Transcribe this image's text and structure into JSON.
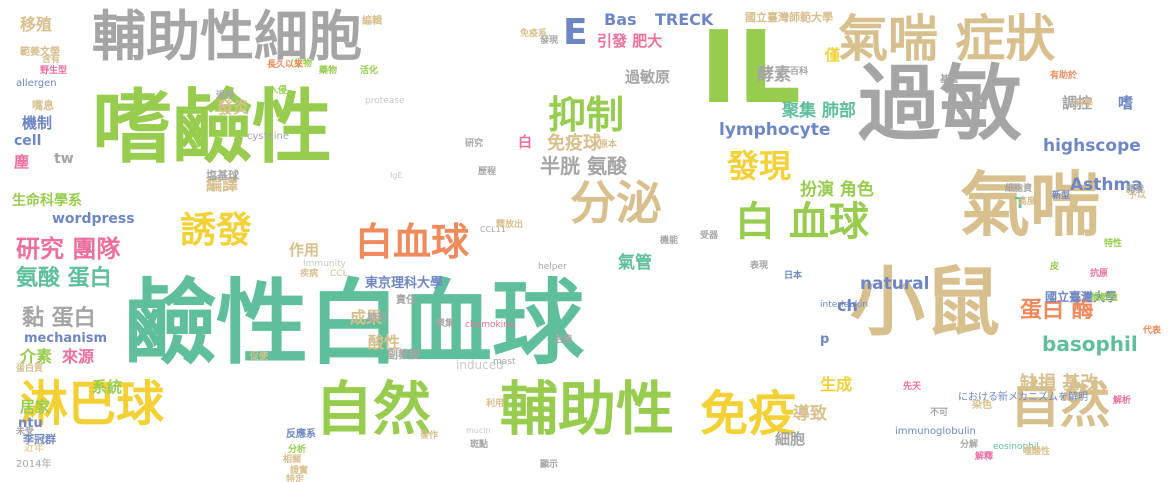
{
  "colors": {
    "tan": "#d8bf8e",
    "green": "#97cc4e",
    "gray": "#a5a5a5",
    "teal": "#5fbf9a",
    "yellow": "#f3d135",
    "orange": "#f08a5d",
    "blue": "#6e87c4",
    "pink": "#ee6f9f",
    "lightgray": "#c8c8c8"
  },
  "words": [
    {
      "text": "嗜鹼性",
      "color": "green"
    },
    {
      "text": "鹼性白血球",
      "color": "teal"
    },
    {
      "text": "輔助性細胞",
      "color": "gray"
    },
    {
      "text": "過敏",
      "color": "gray"
    },
    {
      "text": "IL",
      "color": "green"
    },
    {
      "text": "氣喘 症狀",
      "color": "tan"
    },
    {
      "text": "氣喘",
      "color": "tan"
    },
    {
      "text": "小鼠",
      "color": "tan"
    },
    {
      "text": "自然",
      "color": "green"
    },
    {
      "text": "輔助性",
      "color": "green"
    },
    {
      "text": "自然",
      "color": "tan"
    },
    {
      "text": "淋巴球",
      "color": "yellow"
    },
    {
      "text": "免疫",
      "color": "yellow"
    },
    {
      "text": "白血球",
      "color": "orange"
    },
    {
      "text": "白 血球",
      "color": "green"
    },
    {
      "text": "分泌",
      "color": "tan"
    },
    {
      "text": "抑制",
      "color": "green"
    },
    {
      "text": "誘發",
      "color": "yellow"
    },
    {
      "text": "發現",
      "color": "yellow"
    },
    {
      "text": "E",
      "color": "blue"
    },
    {
      "text": "研究 團隊",
      "color": "pink"
    },
    {
      "text": "氨酸 蛋白",
      "color": "teal"
    },
    {
      "text": "黏 蛋白",
      "color": "gray"
    },
    {
      "text": "免疫球",
      "color": "tan"
    },
    {
      "text": "半胱 氨酸",
      "color": "gray"
    },
    {
      "text": "lymphocyte",
      "color": "blue"
    },
    {
      "text": "highscope",
      "color": "blue"
    },
    {
      "text": "natural",
      "color": "blue"
    },
    {
      "text": "basophil",
      "color": "teal"
    },
    {
      "text": "蛋白 酶",
      "color": "orange"
    },
    {
      "text": "缺損 基改",
      "color": "tan"
    },
    {
      "text": "Asthma",
      "color": "blue"
    },
    {
      "text": "聚集 肺部",
      "color": "teal"
    },
    {
      "text": "扮演 角色",
      "color": "green"
    },
    {
      "text": "TRECK",
      "color": "blue"
    },
    {
      "text": "Bas",
      "color": "blue"
    },
    {
      "text": "引發 肥大",
      "color": "pink"
    },
    {
      "text": "過敏原",
      "color": "gray"
    },
    {
      "text": "酵素",
      "color": "gray"
    },
    {
      "text": "機制",
      "color": "blue"
    },
    {
      "text": "cell",
      "color": "blue"
    },
    {
      "text": "wordpress",
      "color": "blue"
    },
    {
      "text": "mechanism",
      "color": "blue"
    },
    {
      "text": "東京理科大學",
      "color": "blue"
    },
    {
      "text": "生命科學系",
      "color": "green"
    },
    {
      "text": "移殖",
      "color": "tan"
    },
    {
      "text": "發炎",
      "color": "tan"
    },
    {
      "text": "編譯",
      "color": "tan"
    },
    {
      "text": "作用",
      "color": "tan"
    },
    {
      "text": "成果",
      "color": "tan"
    },
    {
      "text": "酸性",
      "color": "tan"
    },
    {
      "text": "介素",
      "color": "green"
    },
    {
      "text": "來源",
      "color": "pink"
    },
    {
      "text": "系統",
      "color": "green"
    },
    {
      "text": "居家",
      "color": "green"
    },
    {
      "text": "ntu",
      "color": "blue"
    },
    {
      "text": "導致",
      "color": "tan"
    },
    {
      "text": "生成",
      "color": "yellow"
    },
    {
      "text": "細胞",
      "color": "gray"
    },
    {
      "text": "氣管",
      "color": "teal"
    },
    {
      "text": "調控",
      "color": "gray"
    },
    {
      "text": "國立臺灣大學",
      "color": "blue"
    },
    {
      "text": "國立臺灣師範大學",
      "color": "tan"
    },
    {
      "text": "僅",
      "color": "yellow"
    },
    {
      "text": "嗜",
      "color": "blue"
    },
    {
      "text": "ch",
      "color": "blue"
    },
    {
      "text": "T",
      "color": "teal"
    },
    {
      "text": "p",
      "color": "blue"
    },
    {
      "text": "白",
      "color": "pink"
    },
    {
      "text": "塵",
      "color": "pink"
    },
    {
      "text": "tw",
      "color": "gray"
    },
    {
      "text": "induced",
      "color": "lightgray"
    },
    {
      "text": "塩基球",
      "color": "gray"
    },
    {
      "text": "李冠群",
      "color": "blue"
    },
    {
      "text": "副教授",
      "color": "gray"
    },
    {
      "text": "期刊",
      "color": "gray"
    },
    {
      "text": "責任",
      "color": "gray"
    },
    {
      "text": "編輯",
      "color": "tan"
    },
    {
      "text": "範姜文榮",
      "color": "tan"
    },
    {
      "text": "嘴息",
      "color": "tan"
    },
    {
      "text": "allergen",
      "color": "blue"
    },
    {
      "text": "cysteine",
      "color": "gray"
    },
    {
      "text": "protease",
      "color": "lightgray"
    },
    {
      "text": "immunoglobulin",
      "color": "blue"
    },
    {
      "text": "eosinophil",
      "color": "teal"
    },
    {
      "text": "interleukin",
      "color": "blue"
    },
    {
      "text": "chemokine",
      "color": "pink"
    },
    {
      "text": "mast",
      "color": "gray"
    },
    {
      "text": "helper",
      "color": "gray"
    },
    {
      "text": "Immunity",
      "color": "lightgray"
    },
    {
      "text": "CCL",
      "color": "tan"
    },
    {
      "text": "CCL11",
      "color": "gray"
    },
    {
      "text": "IgE",
      "color": "lightgray"
    },
    {
      "text": "mucin",
      "color": "lightgray"
    },
    {
      "text": "2014年",
      "color": "gray"
    },
    {
      "text": "近年",
      "color": "tan"
    },
    {
      "text": "における新メカニズムを解明",
      "color": "blue"
    },
    {
      "text": "反應系",
      "color": "blue"
    },
    {
      "text": "分解",
      "color": "gray"
    },
    {
      "text": "治療",
      "color": "gray"
    },
    {
      "text": "聚集",
      "color": "gray"
    },
    {
      "text": "研究",
      "color": "gray"
    },
    {
      "text": "原本",
      "color": "tan"
    },
    {
      "text": "日本",
      "color": "blue"
    },
    {
      "text": "分析",
      "color": "green"
    },
    {
      "text": "疾病",
      "color": "tan"
    },
    {
      "text": "證實",
      "color": "tan"
    },
    {
      "text": "相關",
      "color": "tan"
    },
    {
      "text": "特定",
      "color": "tan"
    },
    {
      "text": "斑點",
      "color": "gray"
    },
    {
      "text": "顯示",
      "color": "gray"
    },
    {
      "text": "歷程",
      "color": "gray"
    },
    {
      "text": "發作",
      "color": "tan"
    },
    {
      "text": "利用",
      "color": "tan"
    },
    {
      "text": "受器",
      "color": "gray"
    },
    {
      "text": "機能",
      "color": "gray"
    },
    {
      "text": "表現",
      "color": "gray"
    },
    {
      "text": "發現",
      "color": "gray"
    },
    {
      "text": "科學",
      "color": "tan"
    },
    {
      "text": "高度",
      "color": "tan"
    },
    {
      "text": "新型",
      "color": "blue"
    },
    {
      "text": "基因",
      "color": "gray"
    },
    {
      "text": "染色",
      "color": "tan"
    },
    {
      "text": "抗原",
      "color": "pink"
    },
    {
      "text": "過敏性",
      "color": "green"
    },
    {
      "text": "特性",
      "color": "green"
    },
    {
      "text": "代表",
      "color": "orange"
    },
    {
      "text": "解釋",
      "color": "pink"
    },
    {
      "text": "噬酸性",
      "color": "tan"
    },
    {
      "text": "入侵",
      "color": "green"
    },
    {
      "text": "生物",
      "color": "green"
    },
    {
      "text": "藥物",
      "color": "green"
    },
    {
      "text": "活化",
      "color": "green"
    },
    {
      "text": "長久以來",
      "color": "orange"
    },
    {
      "text": "過程",
      "color": "gray"
    },
    {
      "text": "免疫系",
      "color": "tan"
    },
    {
      "text": "釋放出",
      "color": "tan"
    },
    {
      "text": "不可",
      "color": "gray"
    },
    {
      "text": "先天",
      "color": "pink"
    },
    {
      "text": "予以",
      "color": "tan"
    },
    {
      "text": "解析",
      "color": "pink"
    },
    {
      "text": "未受",
      "color": "gray"
    },
    {
      "text": "蛋白質",
      "color": "tan"
    },
    {
      "text": "野生型",
      "color": "pink"
    },
    {
      "text": "含有",
      "color": "tan"
    },
    {
      "text": "皮",
      "color": "green"
    },
    {
      "text": "開發",
      "color": "gray"
    },
    {
      "text": "有助於",
      "color": "orange"
    },
    {
      "text": "百科",
      "color": "gray"
    },
    {
      "text": "促使",
      "color": "tan"
    },
    {
      "text": "細胞資",
      "color": "gray"
    },
    {
      "text": "誘導",
      "color": "tan"
    }
  ]
}
